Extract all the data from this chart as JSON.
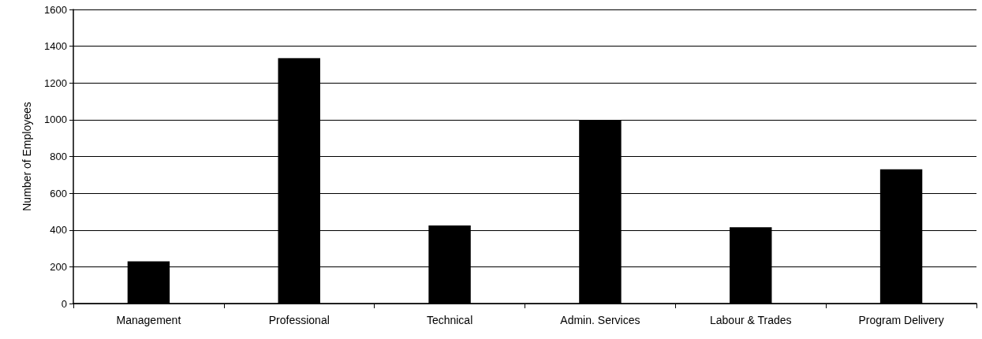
{
  "chart_data": {
    "type": "bar",
    "ylabel": "Number of Employees",
    "categories": [
      "Management",
      "Professional",
      "Technical",
      "Admin. Services",
      "Labour & Trades",
      "Program Delivery"
    ],
    "values": [
      230,
      1335,
      425,
      1000,
      415,
      730
    ],
    "color": "#000000",
    "ylim": [
      0,
      1600
    ],
    "yticks": [
      0,
      200,
      400,
      600,
      800,
      1000,
      1200,
      1400,
      1600
    ],
    "grid": "y"
  }
}
